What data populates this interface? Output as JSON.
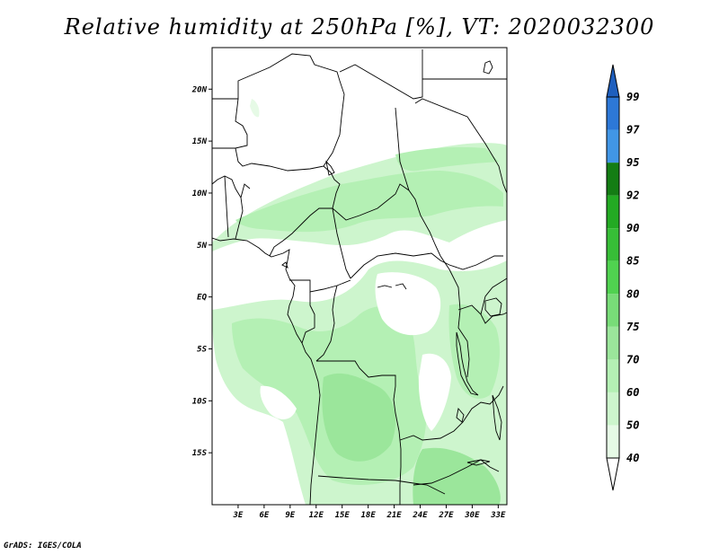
{
  "title": "Relative humidity at 250hPa [%], VT: 2020032300",
  "credit": "GrADS: IGES/COLA",
  "map": {
    "projection": "lat-lon",
    "lon_range": [
      0,
      34
    ],
    "lat_range": [
      -20,
      24
    ],
    "lat_ticks": [
      "20N",
      "15N",
      "10N",
      "5N",
      "EQ",
      "5S",
      "10S",
      "15S"
    ],
    "lon_ticks": [
      "3E",
      "6E",
      "9E",
      "12E",
      "15E",
      "18E",
      "21E",
      "24E",
      "27E",
      "30E",
      "33E"
    ]
  },
  "colorbar": {
    "levels": [
      "40",
      "50",
      "60",
      "70",
      "75",
      "80",
      "85",
      "90",
      "92",
      "95",
      "97",
      "99"
    ],
    "colors": [
      "#ffffff",
      "#e6fae6",
      "#cdf5cd",
      "#b4f0b4",
      "#9be69b",
      "#78dc78",
      "#50d250",
      "#37be37",
      "#23aa23",
      "#147d14",
      "#4196e6",
      "#2d78d7",
      "#1e5fbe"
    ]
  }
}
